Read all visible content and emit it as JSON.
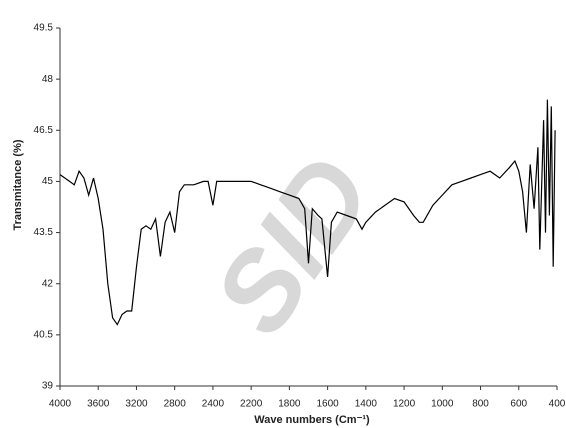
{
  "chart_data": {
    "type": "line",
    "y_label": "Transmitance (%)",
    "x_label": "Wave numbers (Cm⁻¹)",
    "watermark": "SID",
    "color": "#000000",
    "x": [
      4000,
      3900,
      3850,
      3800,
      3750,
      3700,
      3650,
      3600,
      3550,
      3500,
      3450,
      3400,
      3350,
      3300,
      3250,
      3200,
      3150,
      3100,
      3050,
      3000,
      2950,
      2900,
      2850,
      2800,
      2750,
      2700,
      2600,
      2500,
      2450,
      2400,
      2380,
      2300,
      2200,
      2100,
      2000,
      1900,
      1800,
      1750,
      1720,
      1700,
      1680,
      1650,
      1630,
      1600,
      1580,
      1550,
      1500,
      1450,
      1420,
      1400,
      1350,
      1300,
      1250,
      1200,
      1150,
      1120,
      1100,
      1050,
      1000,
      950,
      900,
      850,
      800,
      750,
      700,
      650,
      620,
      600,
      580,
      560,
      540,
      520,
      500,
      490,
      470,
      460,
      450,
      440,
      430,
      420,
      410
    ],
    "values": [
      45.2,
      45.0,
      44.9,
      45.3,
      45.1,
      44.6,
      45.1,
      44.5,
      43.6,
      42.0,
      41.0,
      40.8,
      41.1,
      41.2,
      41.2,
      42.5,
      43.6,
      43.7,
      43.6,
      43.9,
      42.8,
      43.8,
      44.1,
      43.5,
      44.7,
      44.9,
      44.9,
      45.0,
      45.0,
      44.3,
      45.0,
      45.0,
      45.0,
      44.9,
      44.8,
      44.7,
      44.6,
      44.5,
      44.2,
      42.6,
      44.2,
      44.0,
      43.9,
      42.2,
      43.8,
      44.1,
      44.0,
      43.9,
      43.6,
      43.8,
      44.1,
      44.3,
      44.5,
      44.4,
      44.0,
      43.8,
      43.8,
      44.3,
      44.6,
      44.9,
      45.0,
      45.1,
      45.2,
      45.3,
      45.1,
      45.4,
      45.6,
      45.3,
      44.7,
      43.5,
      45.5,
      44.2,
      46.0,
      43.0,
      46.8,
      43.5,
      47.4,
      44.0,
      47.2,
      42.5,
      46.5
    ],
    "xlim": [
      4000,
      400
    ],
    "xticks": [
      4000,
      3600,
      3200,
      2800,
      2400,
      2200,
      1800,
      1600,
      1400,
      1200,
      1000,
      800,
      600,
      400
    ],
    "ylim": [
      39,
      49.5
    ],
    "yticks": [
      39,
      40.5,
      42,
      43.5,
      45,
      46.5,
      48,
      49.5
    ]
  }
}
